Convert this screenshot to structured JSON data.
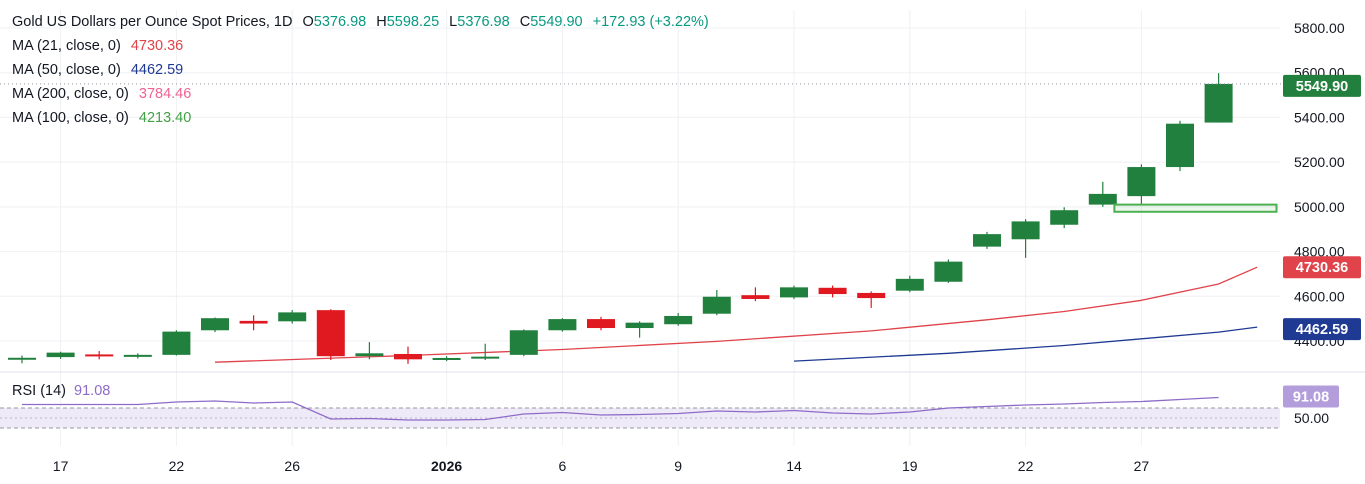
{
  "chart_data": {
    "type": "candlestick",
    "title": "Gold US Dollars per Ounce Spot Prices",
    "timeframe": "1D",
    "ohlc_header": {
      "o_label": "O",
      "o": "5376.98",
      "h_label": "H",
      "h": "5598.25",
      "l_label": "L",
      "l": "5376.98",
      "c_label": "C",
      "c": "5549.90",
      "change": "+172.93 (+3.22%)"
    },
    "indicators": [
      {
        "label": "MA (21, close, 0)",
        "value": "4730.36",
        "color": "#e0434a"
      },
      {
        "label": "MA (50, close, 0)",
        "value": "4462.59",
        "color": "#1f3a93"
      },
      {
        "label": "MA (200, close, 0)",
        "value": "3784.46",
        "color": "#f06292"
      },
      {
        "label": "MA (100, close, 0)",
        "value": "4213.40",
        "color": "#43a047"
      }
    ],
    "y_axis": {
      "ticks": [
        "5800.00",
        "5600.00",
        "5400.00",
        "5200.00",
        "5000.00",
        "4800.00",
        "4600.00",
        "4400.00"
      ],
      "ylim": [
        4350,
        5870
      ]
    },
    "x_axis": {
      "ticks": [
        {
          "label": "17",
          "bar": 1
        },
        {
          "label": "22",
          "bar": 4
        },
        {
          "label": "26",
          "bar": 7
        },
        {
          "label": "2026",
          "bar": 11,
          "bold": true
        },
        {
          "label": "6",
          "bar": 14
        },
        {
          "label": "9",
          "bar": 17
        },
        {
          "label": "14",
          "bar": 20
        },
        {
          "label": "19",
          "bar": 23
        },
        {
          "label": "22",
          "bar": 26
        },
        {
          "label": "27",
          "bar": 29
        }
      ]
    },
    "candles": [
      {
        "o": 4322,
        "h": 4335,
        "l": 4300,
        "c": 4325
      },
      {
        "o": 4328,
        "h": 4352,
        "l": 4320,
        "c": 4348
      },
      {
        "o": 4340,
        "h": 4355,
        "l": 4318,
        "c": 4332
      },
      {
        "o": 4330,
        "h": 4345,
        "l": 4322,
        "c": 4338
      },
      {
        "o": 4338,
        "h": 4448,
        "l": 4335,
        "c": 4442
      },
      {
        "o": 4448,
        "h": 4505,
        "l": 4440,
        "c": 4502
      },
      {
        "o": 4490,
        "h": 4515,
        "l": 4448,
        "c": 4478
      },
      {
        "o": 4488,
        "h": 4538,
        "l": 4478,
        "c": 4528
      },
      {
        "o": 4538,
        "h": 4542,
        "l": 4315,
        "c": 4332
      },
      {
        "o": 4332,
        "h": 4395,
        "l": 4318,
        "c": 4345
      },
      {
        "o": 4342,
        "h": 4375,
        "l": 4298,
        "c": 4318
      },
      {
        "o": 4318,
        "h": 4332,
        "l": 4310,
        "c": 4324
      },
      {
        "o": 4322,
        "h": 4388,
        "l": 4315,
        "c": 4330
      },
      {
        "o": 4338,
        "h": 4452,
        "l": 4332,
        "c": 4448
      },
      {
        "o": 4448,
        "h": 4502,
        "l": 4442,
        "c": 4498
      },
      {
        "o": 4498,
        "h": 4508,
        "l": 4448,
        "c": 4458
      },
      {
        "o": 4458,
        "h": 4488,
        "l": 4415,
        "c": 4482
      },
      {
        "o": 4475,
        "h": 4525,
        "l": 4468,
        "c": 4512
      },
      {
        "o": 4522,
        "h": 4628,
        "l": 4515,
        "c": 4598
      },
      {
        "o": 4605,
        "h": 4640,
        "l": 4578,
        "c": 4588
      },
      {
        "o": 4595,
        "h": 4648,
        "l": 4588,
        "c": 4640
      },
      {
        "o": 4638,
        "h": 4648,
        "l": 4595,
        "c": 4610
      },
      {
        "o": 4615,
        "h": 4622,
        "l": 4548,
        "c": 4592
      },
      {
        "o": 4625,
        "h": 4692,
        "l": 4618,
        "c": 4678
      },
      {
        "o": 4665,
        "h": 4765,
        "l": 4660,
        "c": 4755
      },
      {
        "o": 4822,
        "h": 4888,
        "l": 4812,
        "c": 4878
      },
      {
        "o": 4855,
        "h": 4945,
        "l": 4772,
        "c": 4935
      },
      {
        "o": 4920,
        "h": 4998,
        "l": 4905,
        "c": 4985
      },
      {
        "o": 5010,
        "h": 5112,
        "l": 5000,
        "c": 5058
      },
      {
        "o": 5048,
        "h": 5190,
        "l": 5010,
        "c": 5178
      },
      {
        "o": 5178,
        "h": 5385,
        "l": 5160,
        "c": 5372
      },
      {
        "o": 5377,
        "h": 5598,
        "l": 5377,
        "c": 5550
      }
    ],
    "ma21": [
      [
        5,
        4305
      ],
      [
        10,
        4335
      ],
      [
        14,
        4362
      ],
      [
        18,
        4398
      ],
      [
        22,
        4445
      ],
      [
        25,
        4495
      ],
      [
        27,
        4532
      ],
      [
        29,
        4582
      ],
      [
        31,
        4655
      ],
      [
        32,
        4730
      ]
    ],
    "ma50": [
      [
        20,
        4310
      ],
      [
        24,
        4345
      ],
      [
        27,
        4380
      ],
      [
        29,
        4410
      ],
      [
        31,
        4440
      ],
      [
        32,
        4462
      ]
    ],
    "support_zone": {
      "bar_start": 28.3,
      "bar_end": 32.5,
      "y_top": 5010,
      "y_bottom": 4978
    },
    "last_price_badge": {
      "value": "5549.90",
      "color": "#22803e",
      "price": 5550
    },
    "ma21_badge": {
      "value": "4730.36",
      "color": "#e0434a",
      "price": 4730
    },
    "ma50_badge": {
      "value": "4462.59",
      "color": "#1f3a93",
      "price": 4462
    },
    "rsi": {
      "label": "RSI (14)",
      "value": "91.08",
      "color": "#8e6bc9",
      "band_upper": 70,
      "band_lower": 30,
      "mid_tick": "50.00",
      "ylim": [
        20,
        100
      ],
      "points": [
        [
          0,
          77
        ],
        [
          3,
          77
        ],
        [
          4,
          82
        ],
        [
          5,
          84
        ],
        [
          6,
          80
        ],
        [
          7,
          82
        ],
        [
          8,
          48
        ],
        [
          9,
          49
        ],
        [
          10,
          46
        ],
        [
          11,
          46
        ],
        [
          12,
          47
        ],
        [
          13,
          58
        ],
        [
          14,
          61
        ],
        [
          15,
          56
        ],
        [
          16,
          57
        ],
        [
          17,
          59
        ],
        [
          18,
          64
        ],
        [
          19,
          62
        ],
        [
          20,
          65
        ],
        [
          21,
          60
        ],
        [
          22,
          58
        ],
        [
          23,
          62
        ],
        [
          24,
          70
        ],
        [
          25,
          73
        ],
        [
          26,
          76
        ],
        [
          27,
          78
        ],
        [
          28,
          81
        ],
        [
          29,
          83
        ],
        [
          30,
          87
        ],
        [
          31,
          91.08
        ]
      ],
      "badge_value": "91.08"
    },
    "colors": {
      "up": "#22803e",
      "down": "#e0181f",
      "grid": "#eef0f3",
      "rsi_band": "#efeaf8",
      "support_zone_border": "#4caf50"
    }
  }
}
